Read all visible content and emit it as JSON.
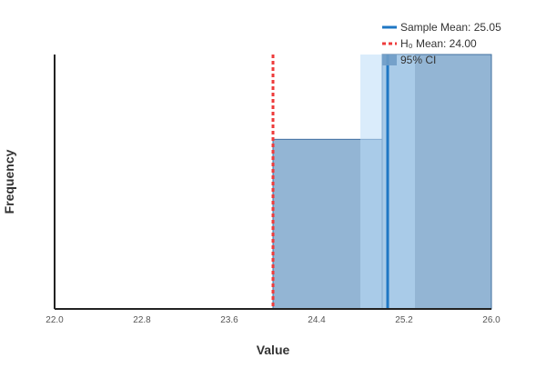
{
  "chart_data": {
    "type": "histogram",
    "xlabel": "Value",
    "ylabel": "Frequency",
    "xlim": [
      22.0,
      26.0
    ],
    "ylim": [
      0,
      1.5
    ],
    "x_ticks": [
      "22.0",
      "22.8",
      "23.6",
      "24.4",
      "25.2",
      "26.0"
    ],
    "y_ticks_shown": false,
    "grid": false,
    "bins": [
      {
        "start": 24.0,
        "end": 25.0,
        "count": 1
      },
      {
        "start": 25.0,
        "end": 26.0,
        "count": 1.5
      }
    ],
    "sample_mean": 25.05,
    "h0_mean": 24.0,
    "ci_95": [
      24.8,
      25.3
    ],
    "legend_position": "top-right",
    "legend": [
      {
        "label": "Sample Mean: 25.05",
        "kind": "sample-mean-line"
      },
      {
        "label": "H₀ Mean: 24.00",
        "kind": "h0-mean-line"
      },
      {
        "label": "95% CI",
        "kind": "ci-band"
      }
    ],
    "colors": {
      "bar_fill": "#6f9cc6",
      "bar_stroke": "#3f6f9f",
      "sample_mean_line": "#1f77c4",
      "h0_mean_line": "#ee3b3b",
      "ci_band": "#bcdcf7",
      "axis": "#222222",
      "tick_text": "#555555",
      "label_text": "#333333"
    }
  }
}
